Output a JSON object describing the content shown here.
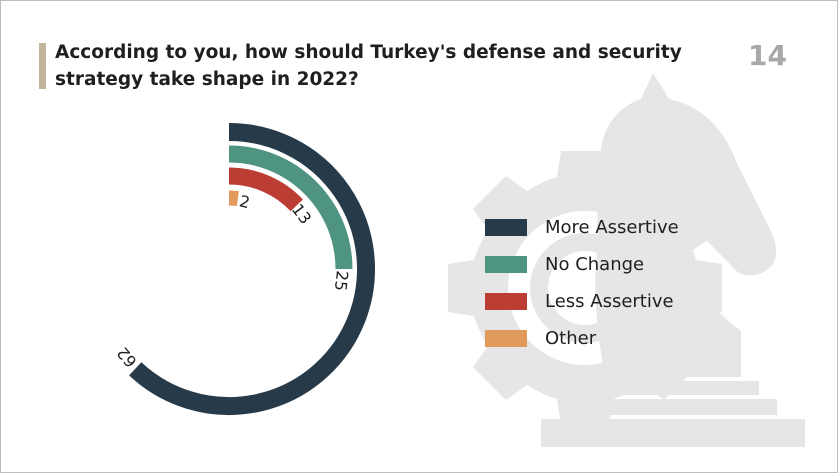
{
  "header": {
    "title": "According to you, how should Turkey's defense and security strategy take shape in 2022?",
    "page_number": "14"
  },
  "chart_data": {
    "type": "radial-bar",
    "title": "According to you, how should Turkey's defense and security strategy take shape in 2022?",
    "categories": [
      "More Assertive",
      "No Change",
      "Less Assertive",
      "Other"
    ],
    "values": [
      62,
      25,
      13,
      2
    ],
    "unit": "",
    "max": 100,
    "colors": [
      "#263a4a",
      "#4e9480",
      "#bb3d33",
      "#e09a5b"
    ],
    "legend_position": "right"
  },
  "background": {
    "icons": [
      "gear-icon",
      "chess-knight-icon"
    ],
    "color": "#e6e6e6"
  }
}
